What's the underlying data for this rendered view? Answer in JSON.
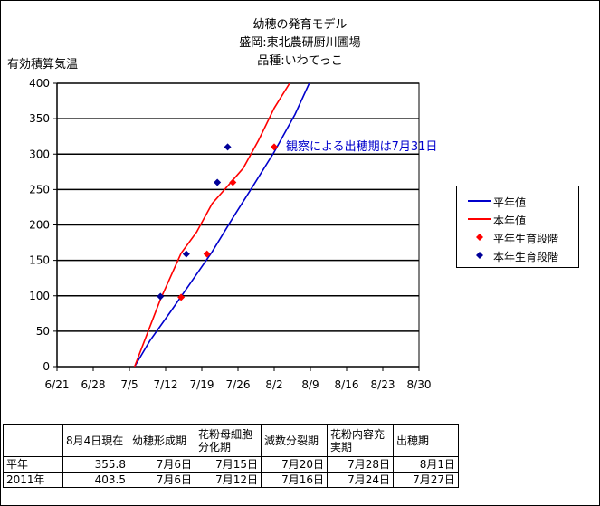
{
  "title_lines": [
    "幼穂の発育モデル",
    "盛岡:東北農研厨川圃場",
    "品種:いわてっこ"
  ],
  "ylabel": "有効積算気温",
  "annotation": "観察による出穂期は7月31日",
  "legend": [
    {
      "label": "平年値",
      "kind": "line",
      "color": "#0000cc"
    },
    {
      "label": "本年値",
      "kind": "line",
      "color": "#ff0000"
    },
    {
      "label": "平年生育段階",
      "kind": "diamond",
      "color": "#ff0000"
    },
    {
      "label": "本年生育段階",
      "kind": "diamond",
      "color": "#000099"
    }
  ],
  "chart_data": {
    "type": "line",
    "title": "幼穂の発育モデル 盛岡:東北農研厨川圃場 品種:いわてっこ",
    "ylabel": "有効積算気温",
    "xlabel": "",
    "x_ticks": [
      "6/21",
      "6/28",
      "7/5",
      "7/12",
      "7/19",
      "7/26",
      "8/2",
      "8/9",
      "8/16",
      "8/23",
      "8/30"
    ],
    "x_tick_days": [
      0,
      7,
      14,
      21,
      28,
      35,
      42,
      49,
      56,
      63,
      70
    ],
    "y_ticks": [
      0,
      50,
      100,
      150,
      200,
      250,
      300,
      350,
      400
    ],
    "ylim": [
      0,
      400
    ],
    "xlim_days": [
      0,
      70
    ],
    "grid": "horizontal",
    "legend_position": "right",
    "series": [
      {
        "name": "平年値",
        "kind": "line",
        "color": "#0000cc",
        "x_days": [
          15,
          18,
          22,
          26,
          30,
          34,
          38,
          42,
          46,
          49
        ],
        "y": [
          0,
          37,
          78,
          120,
          162,
          210,
          256,
          303,
          355.8,
          403.5
        ]
      },
      {
        "name": "本年値",
        "kind": "line",
        "color": "#ff0000",
        "x_days": [
          15,
          17,
          20,
          24,
          27,
          30,
          33,
          36,
          39,
          42,
          45
        ],
        "y": [
          0,
          38,
          95,
          160,
          190,
          230,
          255,
          280,
          320,
          365,
          400
        ]
      },
      {
        "name": "平年生育段階",
        "kind": "marker",
        "color": "#ff0000",
        "x_days": [
          24,
          29,
          34,
          42
        ],
        "y": [
          98,
          159,
          260,
          310
        ]
      },
      {
        "name": "本年生育段階",
        "kind": "marker",
        "color": "#000099",
        "x_days": [
          20,
          25,
          31,
          33
        ],
        "y": [
          99,
          159,
          260,
          310
        ]
      }
    ]
  },
  "table": {
    "headers": [
      "",
      "8月4日現在",
      "幼穂形成期",
      "花粉母細胞分化期",
      "減数分裂期",
      "花粉内容充実期",
      "出穂期"
    ],
    "rows": [
      [
        "平年",
        "355.8",
        "7月6日",
        "7月15日",
        "7月20日",
        "7月28日",
        "8月1日"
      ],
      [
        "2011年",
        "403.5",
        "7月6日",
        "7月12日",
        "7月16日",
        "7月24日",
        "7月27日"
      ]
    ]
  }
}
